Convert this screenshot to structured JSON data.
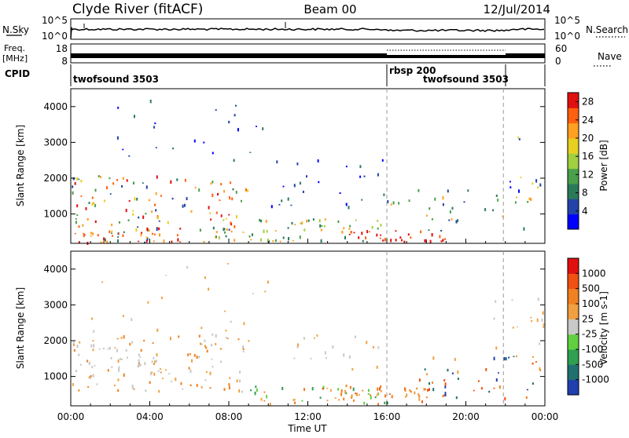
{
  "header": {
    "station": "Clyde River (fitACF)",
    "beam": "Beam 00",
    "date": "12/Jul/2014"
  },
  "strips": {
    "nsky_label": "N.Sky",
    "nsky_ticks": [
      "10^5",
      "10^0"
    ],
    "nsearch_label": "N.Search",
    "freq_label_1": "Freq.",
    "freq_label_2": "[MHz]",
    "freq_ticks": [
      "18",
      "8"
    ],
    "nave_label": "Nave",
    "nave_ticks": [
      "60",
      "0"
    ],
    "cpid_label": "CPID",
    "cpid_segments": [
      {
        "name": "twofsound 3503",
        "start_h": 0,
        "end_h": 16
      },
      {
        "name": "rbsp 200",
        "start_h": 16,
        "end_h": 16
      },
      {
        "name": "twofsound 3503",
        "start_h": 16,
        "end_h": 21.9
      }
    ]
  },
  "chart_data": [
    {
      "type": "heatmap",
      "title": "",
      "xlabel": "Time UT",
      "ylabel": "Slant Range [km]",
      "xlim": [
        0,
        24
      ],
      "ylim": [
        180,
        4500
      ],
      "x_ticks": [
        "00:00",
        "04:00",
        "08:00",
        "12:00",
        "16:00",
        "20:00",
        "00:00"
      ],
      "y_ticks": [
        1000,
        2000,
        3000,
        4000
      ],
      "colorbar": {
        "label": "Power [dB]",
        "ticks": [
          4,
          8,
          12,
          16,
          20,
          24,
          28
        ],
        "range": [
          0,
          30
        ],
        "colors": [
          "#0000ff",
          "#2244aa",
          "#2a7a5a",
          "#4aa04a",
          "#a0d040",
          "#e8d020",
          "#ffa020",
          "#ff6010",
          "#e01010"
        ]
      }
    },
    {
      "type": "heatmap",
      "title": "",
      "xlabel": "Time UT",
      "ylabel": "Slant Range [km]",
      "xlim": [
        0,
        24
      ],
      "ylim": [
        180,
        4500
      ],
      "x_ticks": [
        "00:00",
        "04:00",
        "08:00",
        "12:00",
        "16:00",
        "20:00",
        "00:00"
      ],
      "y_ticks": [
        1000,
        2000,
        3000,
        4000
      ],
      "colorbar": {
        "label": "Velocity [m s-1]",
        "ticks": [
          "1000",
          "500",
          "100",
          "25",
          "-25",
          "-100",
          "-500",
          "-1000"
        ],
        "colors": [
          "#2040b0",
          "#207070",
          "#30a050",
          "#60d040",
          "#c8c8c8",
          "#f0a040",
          "#f08020",
          "#f05010",
          "#e01010"
        ]
      }
    }
  ]
}
